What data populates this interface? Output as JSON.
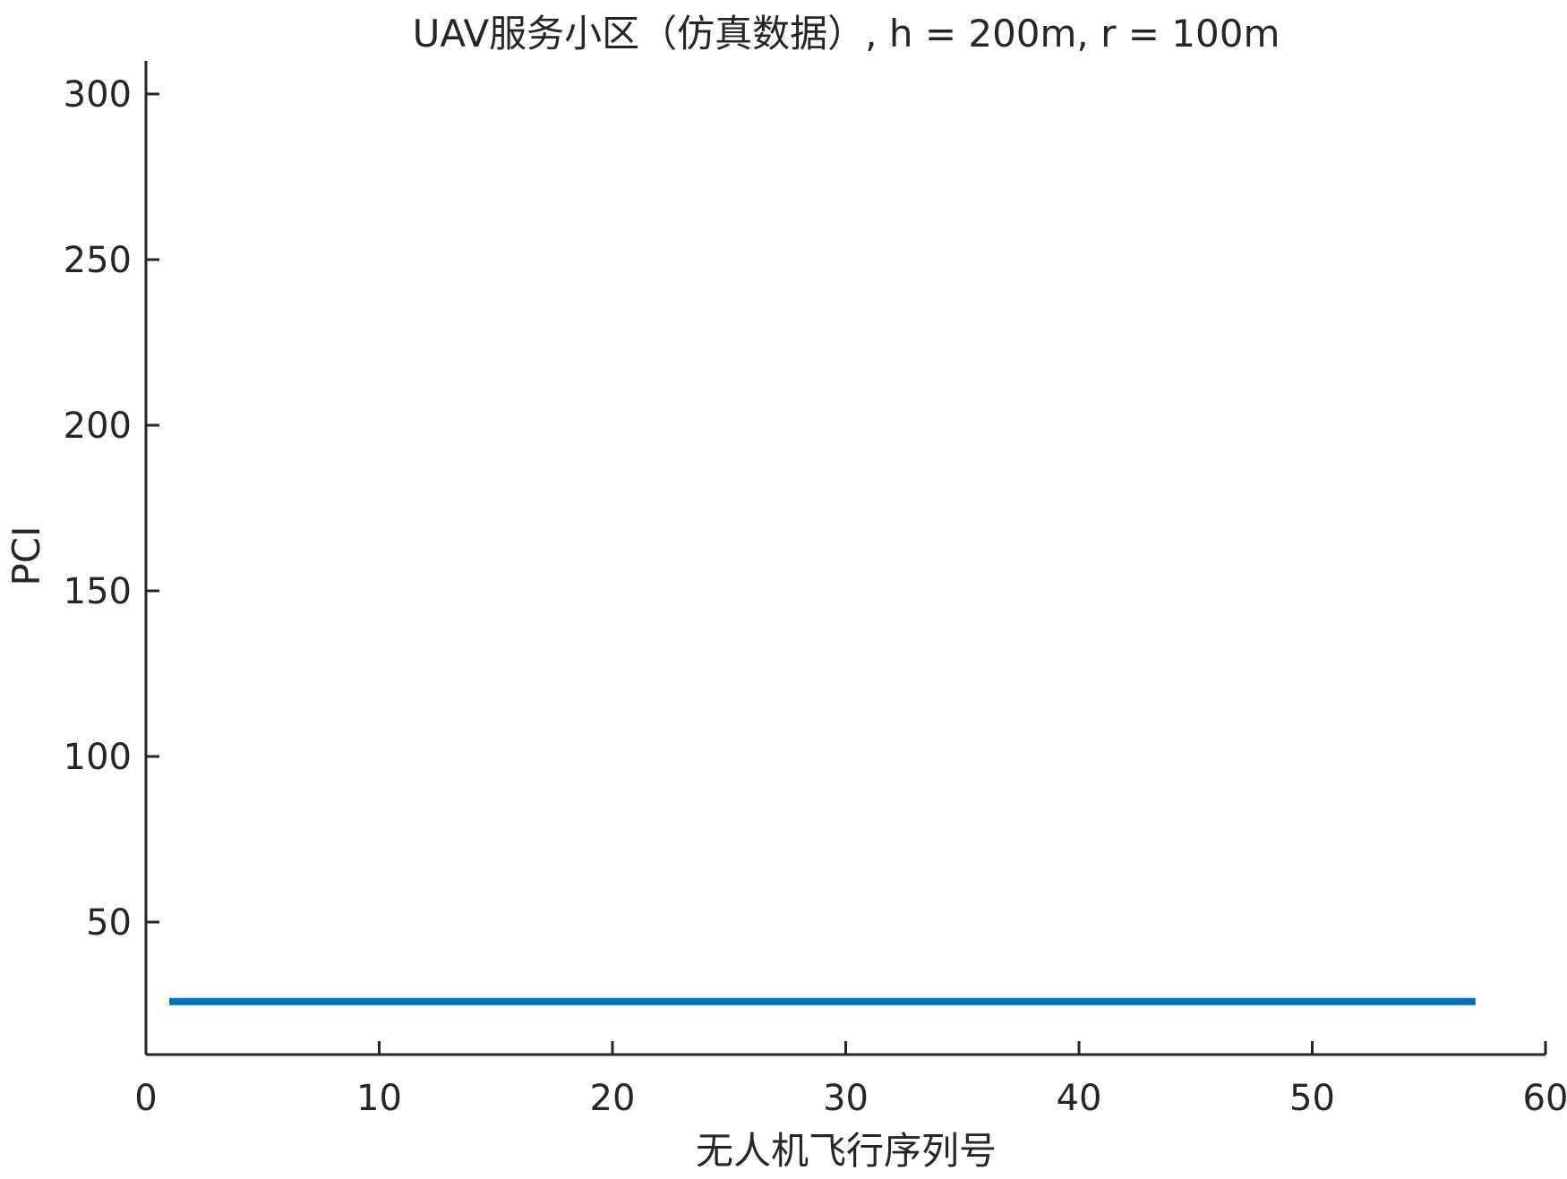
{
  "chart_data": {
    "type": "line",
    "title": "UAV服务小区（仿真数据）, h = 200m, r = 100m",
    "xlabel": "无人机飞行序列号",
    "ylabel": "PCI",
    "xlim": [
      0,
      60
    ],
    "ylim": [
      10,
      310
    ],
    "xticks": [
      0,
      10,
      20,
      30,
      40,
      50,
      60
    ],
    "yticks": [
      50,
      100,
      150,
      200,
      250,
      300
    ],
    "grid": false,
    "series": [
      {
        "color": "#0072BD",
        "x": [
          1,
          2,
          3,
          4,
          5,
          6,
          7,
          8,
          9,
          10,
          11,
          12,
          13,
          14,
          15,
          16,
          17,
          18,
          19,
          20,
          21,
          22,
          23,
          24,
          25,
          26,
          27,
          28,
          29,
          30,
          31,
          32,
          33,
          34,
          35,
          36,
          37,
          38,
          39,
          40,
          41,
          42,
          43,
          44,
          45,
          46,
          47,
          48,
          49,
          50,
          51,
          52,
          53,
          54,
          55,
          56,
          57
        ],
        "y": [
          26,
          26,
          26,
          26,
          26,
          26,
          26,
          26,
          26,
          26,
          26,
          26,
          26,
          26,
          26,
          26,
          26,
          26,
          26,
          26,
          26,
          26,
          26,
          26,
          26,
          26,
          26,
          26,
          26,
          26,
          26,
          26,
          26,
          26,
          26,
          26,
          26,
          26,
          26,
          26,
          26,
          26,
          26,
          26,
          26,
          26,
          26,
          26,
          26,
          26,
          26,
          26,
          26,
          26,
          26,
          26,
          26
        ]
      }
    ]
  }
}
